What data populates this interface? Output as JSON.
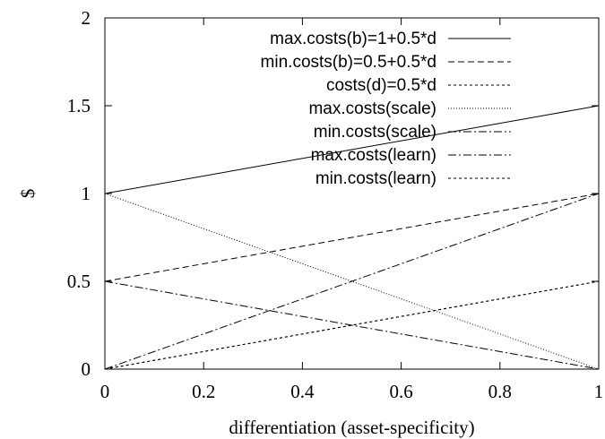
{
  "chart_data": {
    "type": "line",
    "title": "",
    "xlabel": "differentiation (asset-specificity)",
    "ylabel": "$",
    "xlim": [
      0,
      1
    ],
    "ylim": [
      0,
      2
    ],
    "xticks": [
      "0",
      "0.2",
      "0.4",
      "0.6",
      "0.8",
      "1"
    ],
    "yticks": [
      "0",
      "0.5",
      "1",
      "1.5",
      "2"
    ],
    "xtick_values": [
      0,
      0.2,
      0.4,
      0.6,
      0.8,
      1
    ],
    "ytick_values": [
      0,
      0.5,
      1,
      1.5,
      2
    ],
    "grid": false,
    "legend_position": "top-right",
    "series": [
      {
        "name": "max.costs(b)=1+0.5*d",
        "dash": "solid",
        "x": [
          0,
          1
        ],
        "y": [
          1,
          1.5
        ]
      },
      {
        "name": "min.costs(b)=0.5+0.5*d",
        "dash": "dashed",
        "x": [
          0,
          1
        ],
        "y": [
          0.5,
          1
        ]
      },
      {
        "name": "costs(d)=0.5*d",
        "dash": "short-dash",
        "x": [
          0,
          1
        ],
        "y": [
          0,
          0.5
        ]
      },
      {
        "name": "max.costs(scale)",
        "dash": "dotted",
        "x": [
          0,
          1
        ],
        "y": [
          1,
          0
        ]
      },
      {
        "name": "min.costs(scale)",
        "dash": "dash-dot",
        "x": [
          0,
          1
        ],
        "y": [
          0.5,
          0
        ]
      },
      {
        "name": "max.costs(learn)",
        "dash": "dash-dot",
        "x": [
          0,
          1
        ],
        "y": [
          0,
          1
        ]
      },
      {
        "name": "min.costs(learn)",
        "dash": "short-dash",
        "x": [
          0,
          1
        ],
        "y": [
          0,
          0.5
        ]
      }
    ]
  }
}
